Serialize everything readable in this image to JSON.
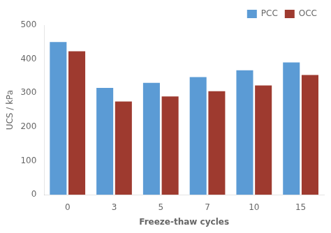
{
  "chart_data": {
    "type": "bar",
    "xlabel": "Freeze-thaw cycles",
    "ylabel": "UCS / kPa",
    "categories": [
      "0",
      "3",
      "5",
      "7",
      "10",
      "15"
    ],
    "series": [
      {
        "name": "PCC",
        "color": "#5b9bd5",
        "values": [
          450,
          315,
          330,
          347,
          367,
          390
        ]
      },
      {
        "name": "OCC",
        "color": "#9e3a2f",
        "values": [
          423,
          275,
          290,
          305,
          322,
          353
        ]
      }
    ],
    "ylim": [
      0,
      500
    ],
    "yticks": [
      0,
      100,
      200,
      300,
      400,
      500
    ],
    "grid": false,
    "legend": "upper right"
  }
}
